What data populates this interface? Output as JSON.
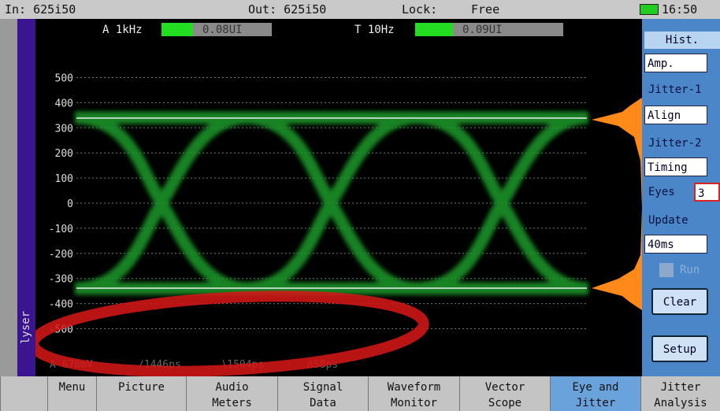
{
  "status_bar": {
    "input": "In: 625i50",
    "output": "Out: 625i50",
    "lock_label": "Lock:",
    "lock_value": "Free",
    "time": "16:50"
  },
  "meters": [
    {
      "label": "A 1kHz",
      "value": "0.08UI"
    },
    {
      "label": "T 10Hz",
      "value": "0.09UI"
    }
  ],
  "side_label": "lyser",
  "y_axis": {
    "ticks": [
      500,
      400,
      300,
      200,
      100,
      0,
      -100,
      -200,
      -300,
      -400,
      -500
    ]
  },
  "readouts": [
    "A 676mV",
    "∕1446ps",
    "∖1504ps",
    "Δ58ps"
  ],
  "panel": {
    "header": "Hist.",
    "amp": "Amp.",
    "jitter1_label": "Jitter-1",
    "jitter1_value": "Align",
    "jitter2_label": "Jitter-2",
    "jitter2_value": "Timing",
    "eyes_label": "Eyes",
    "eyes_value": "3",
    "update_label": "Update",
    "update_value": "40ms",
    "run": "Run",
    "clear": "Clear",
    "setup": "Setup"
  },
  "tabs": [
    {
      "lines": [
        "Menu"
      ]
    },
    {
      "lines": [
        "Picture"
      ]
    },
    {
      "lines": [
        "Audio",
        "Meters"
      ]
    },
    {
      "lines": [
        "Signal",
        "Data"
      ]
    },
    {
      "lines": [
        "Waveform",
        "Monitor"
      ]
    },
    {
      "lines": [
        "Vector",
        "Scope"
      ]
    },
    {
      "lines": [
        "Eye and",
        "Jitter"
      ]
    },
    {
      "lines": [
        "Jitter",
        "Analysis"
      ]
    }
  ]
}
